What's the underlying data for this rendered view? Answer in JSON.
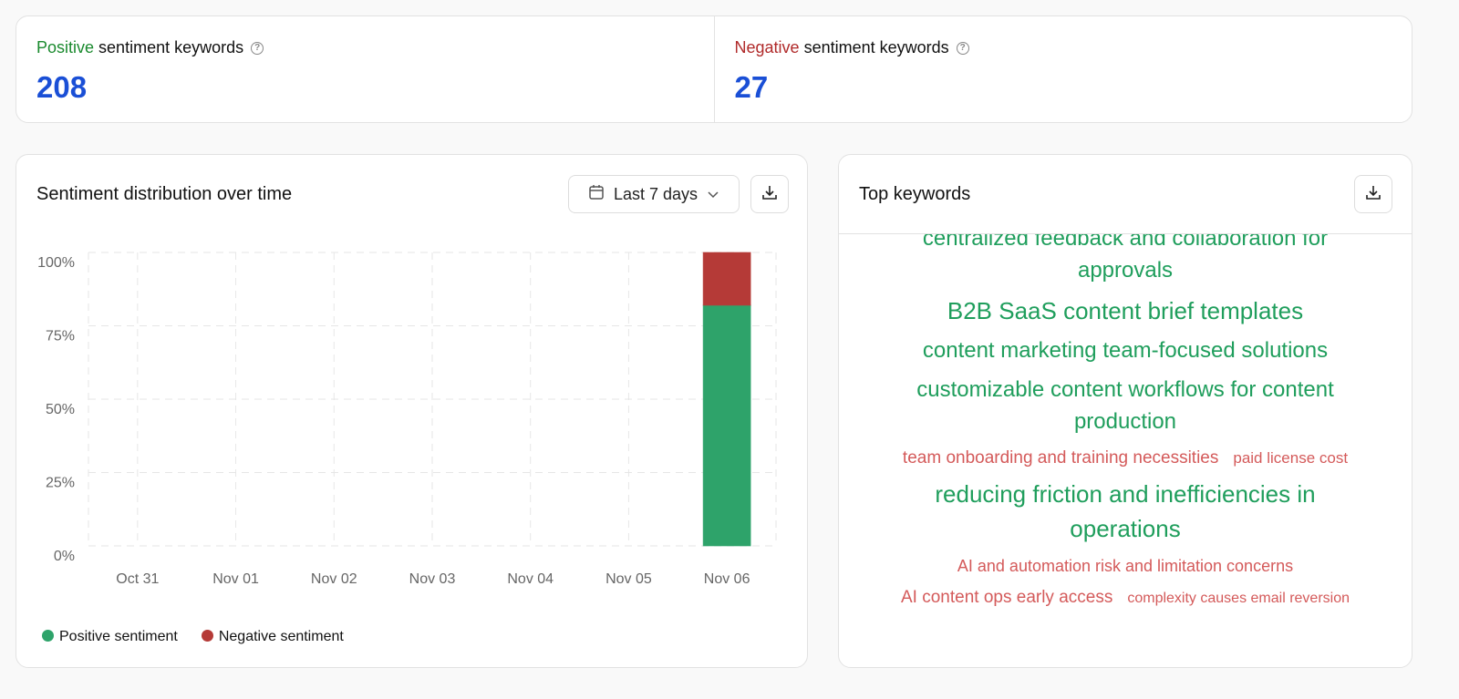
{
  "stats": {
    "positive": {
      "accent": "Positive",
      "label": "sentiment keywords",
      "value": "208",
      "color": "#1a8a2e"
    },
    "negative": {
      "accent": "Negative",
      "label": "sentiment keywords",
      "value": "27",
      "color": "#b02a2a"
    }
  },
  "chart_card": {
    "title": "Sentiment distribution over time",
    "range_label": "Last 7 days"
  },
  "chart_data": {
    "type": "bar",
    "stacked": true,
    "categories": [
      "Oct 31",
      "Nov 01",
      "Nov 02",
      "Nov 03",
      "Nov 04",
      "Nov 05",
      "Nov 06"
    ],
    "series": [
      {
        "name": "Positive sentiment",
        "color": "#2ea36a",
        "values": [
          0,
          0,
          0,
          0,
          0,
          0,
          82
        ]
      },
      {
        "name": "Negative sentiment",
        "color": "#b53a37",
        "values": [
          0,
          0,
          0,
          0,
          0,
          0,
          18
        ]
      }
    ],
    "yticks": [
      "0%",
      "25%",
      "50%",
      "75%",
      "100%"
    ],
    "ylim": [
      0,
      100
    ],
    "grid": true,
    "legend": "bottom-left"
  },
  "keywords_card": {
    "title": "Top keywords",
    "items": [
      {
        "text": "centralized feedback and collaboration for approvals",
        "sentiment": "pos",
        "size": 24
      },
      {
        "text": "B2B SaaS content brief templates",
        "sentiment": "pos",
        "size": 26
      },
      {
        "text": "content marketing team-focused solutions",
        "sentiment": "pos",
        "size": 24
      },
      {
        "text": "customizable content workflows for content production",
        "sentiment": "pos",
        "size": 24
      },
      {
        "text": "team onboarding and training necessities",
        "sentiment": "neg",
        "size": 19
      },
      {
        "text": "paid license cost",
        "sentiment": "neg",
        "size": 17
      },
      {
        "text": "reducing friction and inefficiencies in operations",
        "sentiment": "pos",
        "size": 26
      },
      {
        "text": "AI and automation risk and limitation concerns",
        "sentiment": "neg",
        "size": 18
      },
      {
        "text": "AI content ops early access",
        "sentiment": "neg",
        "size": 19
      },
      {
        "text": "complexity causes email reversion",
        "sentiment": "neg",
        "size": 16
      }
    ]
  }
}
